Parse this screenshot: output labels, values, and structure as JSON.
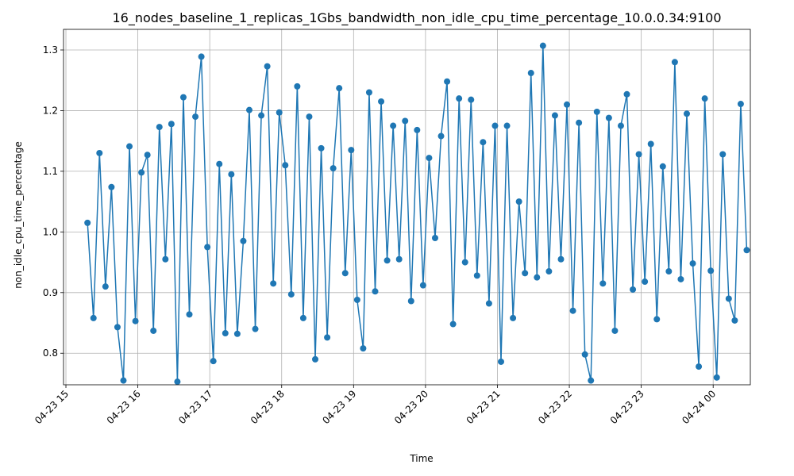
{
  "chart_data": {
    "type": "line",
    "title": "16_nodes_baseline_1_replicas_1Gbs_bandwidth_non_idle_cpu_time_percentage_10.0.0.34:9100",
    "x_label": "Time",
    "y_label": "non_idle_cpu_time_percentage",
    "x": [
      "04-23 15:18",
      "04-23 15:23",
      "04-23 15:28",
      "04-23 15:33",
      "04-23 15:38",
      "04-23 15:43",
      "04-23 15:48",
      "04-23 15:53",
      "04-23 15:58",
      "04-23 16:03",
      "04-23 16:08",
      "04-23 16:13",
      "04-23 16:18",
      "04-23 16:23",
      "04-23 16:28",
      "04-23 16:33",
      "04-23 16:38",
      "04-23 16:43",
      "04-23 16:48",
      "04-23 16:53",
      "04-23 16:58",
      "04-23 17:03",
      "04-23 17:08",
      "04-23 17:13",
      "04-23 17:18",
      "04-23 17:23",
      "04-23 17:28",
      "04-23 17:33",
      "04-23 17:38",
      "04-23 17:43",
      "04-23 17:48",
      "04-23 17:53",
      "04-23 17:58",
      "04-23 18:03",
      "04-23 18:08",
      "04-23 18:13",
      "04-23 18:18",
      "04-23 18:23",
      "04-23 18:28",
      "04-23 18:33",
      "04-23 18:38",
      "04-23 18:43",
      "04-23 18:48",
      "04-23 18:53",
      "04-23 18:58",
      "04-23 19:03",
      "04-23 19:08",
      "04-23 19:13",
      "04-23 19:18",
      "04-23 19:23",
      "04-23 19:28",
      "04-23 19:33",
      "04-23 19:38",
      "04-23 19:43",
      "04-23 19:48",
      "04-23 19:53",
      "04-23 19:58",
      "04-23 20:03",
      "04-23 20:08",
      "04-23 20:13",
      "04-23 20:18",
      "04-23 20:23",
      "04-23 20:28",
      "04-23 20:33",
      "04-23 20:38",
      "04-23 20:43",
      "04-23 20:48",
      "04-23 20:53",
      "04-23 20:58",
      "04-23 21:03",
      "04-23 21:08",
      "04-23 21:13",
      "04-23 21:18",
      "04-23 21:23",
      "04-23 21:28",
      "04-23 21:33",
      "04-23 21:38",
      "04-23 21:43",
      "04-23 21:48",
      "04-23 21:53",
      "04-23 21:58",
      "04-23 22:03",
      "04-23 22:08",
      "04-23 22:13",
      "04-23 22:18",
      "04-23 22:23",
      "04-23 22:28",
      "04-23 22:33",
      "04-23 22:38",
      "04-23 22:43",
      "04-23 22:48",
      "04-23 22:53",
      "04-23 22:58",
      "04-23 23:03",
      "04-23 23:08",
      "04-23 23:13",
      "04-23 23:18",
      "04-23 23:23",
      "04-23 23:28",
      "04-23 23:33",
      "04-23 23:38",
      "04-23 23:43",
      "04-23 23:48",
      "04-23 23:53",
      "04-23 23:58",
      "04-24 00:03",
      "04-24 00:08",
      "04-24 00:13",
      "04-24 00:18",
      "04-24 00:23",
      "04-24 00:28"
    ],
    "series": [
      {
        "name": "non_idle_cpu_time_percentage",
        "color": "#1f77b4",
        "values": [
          1.015,
          0.858,
          1.13,
          0.91,
          1.074,
          0.843,
          0.755,
          1.141,
          0.853,
          1.098,
          1.127,
          0.837,
          1.173,
          0.955,
          1.178,
          0.753,
          1.222,
          0.864,
          1.19,
          1.289,
          0.975,
          0.787,
          1.112,
          0.833,
          1.095,
          0.832,
          0.985,
          1.201,
          0.84,
          1.192,
          1.273,
          0.915,
          1.197,
          1.11,
          0.897,
          1.24,
          0.858,
          1.19,
          0.79,
          1.138,
          0.826,
          1.105,
          1.237,
          0.932,
          1.135,
          0.888,
          0.808,
          1.23,
          0.902,
          1.215,
          0.953,
          1.175,
          0.955,
          1.183,
          0.886,
          1.168,
          0.912,
          1.122,
          0.99,
          1.158,
          1.248,
          0.848,
          1.22,
          0.95,
          1.218,
          0.928,
          1.148,
          0.882,
          1.175,
          0.786,
          1.175,
          0.858,
          1.05,
          0.932,
          1.262,
          0.925,
          1.307,
          0.935,
          1.192,
          0.955,
          1.21,
          0.87,
          1.18,
          0.798,
          0.755,
          1.198,
          0.915,
          1.188,
          0.837,
          1.175,
          1.227,
          0.905,
          1.128,
          0.918,
          1.145,
          0.856,
          1.108,
          0.935,
          1.28,
          0.922,
          1.195,
          0.948,
          0.778,
          1.22,
          0.936,
          0.76,
          1.128,
          0.89,
          0.854,
          1.211,
          0.97
        ]
      }
    ],
    "xlim": [
      "04-23 14:58",
      "04-24 00:31"
    ],
    "xticks": [
      {
        "value": "04-23 15:00",
        "label": "04-23 15"
      },
      {
        "value": "04-23 16:00",
        "label": "04-23 16"
      },
      {
        "value": "04-23 17:00",
        "label": "04-23 17"
      },
      {
        "value": "04-23 18:00",
        "label": "04-23 18"
      },
      {
        "value": "04-23 19:00",
        "label": "04-23 19"
      },
      {
        "value": "04-23 20:00",
        "label": "04-23 20"
      },
      {
        "value": "04-23 21:00",
        "label": "04-23 21"
      },
      {
        "value": "04-23 22:00",
        "label": "04-23 22"
      },
      {
        "value": "04-23 23:00",
        "label": "04-23 23"
      },
      {
        "value": "04-24 00:00",
        "label": "04-24 00"
      }
    ],
    "ylim": [
      0.748,
      1.334
    ],
    "yticks": [
      0.8,
      0.9,
      {
        "value": 1,
        "label": "1.0"
      },
      1.1,
      1.2,
      1.3
    ],
    "grid": true,
    "markers": true
  }
}
